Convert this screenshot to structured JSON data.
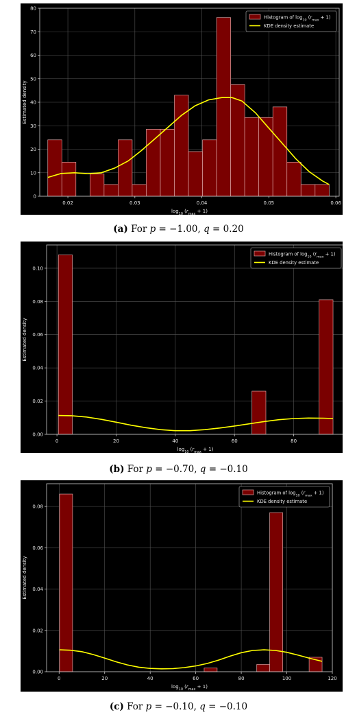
{
  "colors": {
    "figure_bg": "#000000",
    "axes_edge": "#cccccc",
    "bar_fill": "#7a0000",
    "bar_edge": "#d9a0a0",
    "kde_line": "#ffff00",
    "grid": "#555555",
    "text": "#e8e8e8"
  },
  "legend": {
    "hist_prefix": "Histogram of log",
    "hist_sub": "10",
    "hist_paren_open": " (",
    "hist_r": "r",
    "hist_r_sub": "max",
    "hist_suffix": " + 1)",
    "kde": "KDE density estimate"
  },
  "xlabel": {
    "prefix": "log",
    "sub": "10",
    "paren_open": " (",
    "r": "r",
    "r_sub": "max",
    "suffix": " + 1)"
  },
  "captions": [
    {
      "letter": "(a)",
      "for": " For ",
      "p": "p",
      "p_val": " = −1.00, ",
      "q": "q",
      "q_val": " = 0.20"
    },
    {
      "letter": "(b)",
      "for": " For ",
      "p": "p",
      "p_val": " = −0.70, ",
      "q": "q",
      "q_val": " = −0.10"
    },
    {
      "letter": "(c)",
      "for": " For ",
      "p": "p",
      "p_val": " = −0.10, ",
      "q": "q",
      "q_val": " = −0.10"
    }
  ],
  "chart_data": [
    {
      "type": "bar",
      "ylabel": "Estimated density",
      "xlim": [
        0.0158,
        0.0605
      ],
      "ylim": [
        0,
        80
      ],
      "xticks": [
        0.02,
        0.03,
        0.04,
        0.05,
        0.06
      ],
      "xtick_labels": [
        "0.02",
        "0.03",
        "0.04",
        "0.05",
        "0.06"
      ],
      "yticks": [
        0,
        10,
        20,
        30,
        40,
        50,
        60,
        70,
        80
      ],
      "ytick_labels": [
        "0",
        "10",
        "20",
        "30",
        "40",
        "50",
        "60",
        "70",
        "80"
      ],
      "grid": true,
      "legend_position": "top-right",
      "histogram": {
        "bins": [
          [
            0.017,
            0.0191
          ],
          [
            0.0191,
            0.0212
          ],
          [
            0.0233,
            0.0254
          ],
          [
            0.0254,
            0.0275
          ],
          [
            0.0275,
            0.0296
          ],
          [
            0.0296,
            0.0317
          ],
          [
            0.0317,
            0.0338
          ],
          [
            0.0338,
            0.0359
          ],
          [
            0.0359,
            0.038
          ],
          [
            0.038,
            0.0401
          ],
          [
            0.0401,
            0.0422
          ],
          [
            0.0422,
            0.0443
          ],
          [
            0.0443,
            0.0464
          ],
          [
            0.0464,
            0.0485
          ],
          [
            0.0485,
            0.0506
          ],
          [
            0.0506,
            0.0527
          ],
          [
            0.0527,
            0.0548
          ],
          [
            0.0548,
            0.0569
          ],
          [
            0.0569,
            0.059
          ]
        ],
        "densities": [
          24,
          14.5,
          9.5,
          5,
          24,
          5,
          28.5,
          28.5,
          43,
          19,
          24,
          76,
          47.5,
          33.5,
          33.5,
          38,
          14.5,
          5,
          5
        ]
      },
      "kde": {
        "x": [
          0.017,
          0.019,
          0.021,
          0.023,
          0.025,
          0.027,
          0.029,
          0.031,
          0.033,
          0.035,
          0.037,
          0.039,
          0.041,
          0.043,
          0.0445,
          0.046,
          0.048,
          0.05,
          0.052,
          0.054,
          0.056,
          0.058,
          0.059
        ],
        "y": [
          8,
          9.7,
          10,
          9.6,
          10,
          12,
          15,
          19.5,
          24.5,
          29.5,
          34.5,
          38.5,
          41,
          42,
          42,
          40.5,
          35.5,
          29,
          22.5,
          16,
          10.5,
          6.5,
          5
        ]
      }
    },
    {
      "type": "bar",
      "ylabel": "Estimated density",
      "xlim": [
        -3.5,
        97
      ],
      "ylim": [
        0,
        0.114
      ],
      "xticks": [
        0,
        20,
        40,
        60,
        80
      ],
      "xtick_labels": [
        "0",
        "20",
        "40",
        "60",
        "80"
      ],
      "yticks": [
        0,
        0.02,
        0.04,
        0.06,
        0.08,
        0.1
      ],
      "ytick_labels": [
        "0.00",
        "0.02",
        "0.04",
        "0.06",
        "0.08",
        "0.10"
      ],
      "grid": true,
      "legend_position": "top-right",
      "histogram": {
        "bins": [
          [
            0.5,
            5.2
          ],
          [
            65.9,
            70.6
          ],
          [
            88.6,
            93.3
          ]
        ],
        "densities": [
          0.108,
          0.026,
          0.081
        ]
      },
      "kde": {
        "x": [
          0.5,
          5,
          10,
          15,
          20,
          25,
          30,
          35,
          40,
          45,
          50,
          55,
          60,
          65,
          70,
          75,
          80,
          85,
          90,
          93.3
        ],
        "y": [
          0.0113,
          0.0112,
          0.0104,
          0.009,
          0.0073,
          0.0055,
          0.004,
          0.0028,
          0.0022,
          0.0022,
          0.0028,
          0.0038,
          0.005,
          0.0063,
          0.0077,
          0.0088,
          0.0095,
          0.0098,
          0.0097,
          0.0095
        ]
      }
    },
    {
      "type": "bar",
      "ylabel": "Estimated density",
      "xlim": [
        -5.5,
        120
      ],
      "ylim": [
        0,
        0.091
      ],
      "xticks": [
        0,
        20,
        40,
        60,
        80,
        100,
        120
      ],
      "xtick_labels": [
        "0",
        "20",
        "40",
        "60",
        "80",
        "100",
        "120"
      ],
      "yticks": [
        0,
        0.02,
        0.04,
        0.06,
        0.08
      ],
      "ytick_labels": [
        "0.00",
        "0.02",
        "0.04",
        "0.06",
        "0.08"
      ],
      "grid": true,
      "legend_position": "top-right",
      "histogram": {
        "bins": [
          [
            0.2,
            5.9
          ],
          [
            63.7,
            69.4
          ],
          [
            86.8,
            92.5
          ],
          [
            92.5,
            98.2
          ],
          [
            109.8,
            115.5
          ]
        ],
        "densities": [
          0.086,
          0.0018,
          0.0035,
          0.077,
          0.007
        ]
      },
      "kde": {
        "x": [
          0.2,
          5,
          10,
          15,
          20,
          25,
          30,
          35,
          40,
          45,
          50,
          55,
          60,
          65,
          70,
          75,
          80,
          85,
          90,
          95,
          100,
          105,
          110,
          115.5
        ],
        "y": [
          0.0106,
          0.0104,
          0.0097,
          0.0083,
          0.0066,
          0.0048,
          0.0033,
          0.0022,
          0.0016,
          0.0014,
          0.0015,
          0.002,
          0.0028,
          0.004,
          0.0056,
          0.0075,
          0.0092,
          0.0103,
          0.0106,
          0.0103,
          0.0094,
          0.008,
          0.0065,
          0.005
        ]
      }
    }
  ]
}
